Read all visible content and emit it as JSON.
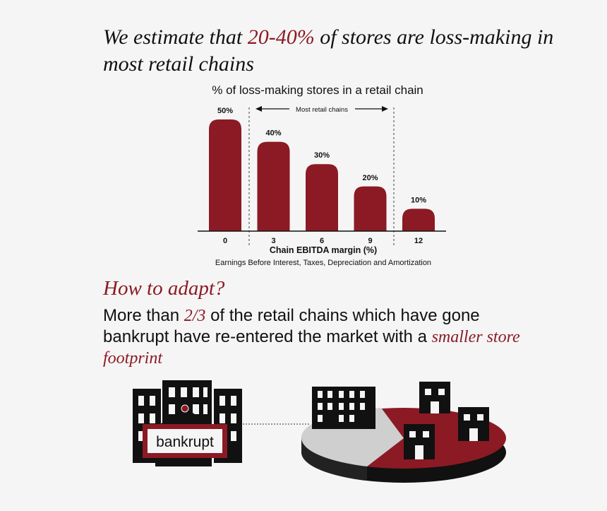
{
  "headline": {
    "part1": "We estimate that ",
    "highlight": "20-40%",
    "part2": " of stores are loss-making in most retail chains"
  },
  "colors": {
    "accent": "#8b1a24",
    "dark": "#111111",
    "grey": "#bdbdbd"
  },
  "chart_data": {
    "type": "bar",
    "title": "% of loss-making stores in a retail chain",
    "xlabel": "Chain EBITDA margin (%)",
    "xlabel_note": "Earnings Before Interest, Taxes, Depreciation and Amortization",
    "categories": [
      "0",
      "3",
      "6",
      "9",
      "12"
    ],
    "values": [
      50,
      40,
      30,
      20,
      10
    ],
    "data_labels": [
      "50%",
      "40%",
      "30%",
      "20%",
      "10%"
    ],
    "ylim": [
      0,
      50
    ],
    "annotation": "Most retail chains",
    "annotation_range": [
      "3",
      "9"
    ],
    "grid": false
  },
  "adapt": {
    "heading": "How to adapt?",
    "text1": "More than ",
    "highlight1": "2/3",
    "text2": " of the retail chains which have gone bankrupt have re-entered the market with a ",
    "highlight2": "smaller store footprint"
  },
  "illustration": {
    "sign_text": "bankrupt",
    "left_icon": "office-buildings-icon",
    "right_icon": "market-pie-icon"
  }
}
